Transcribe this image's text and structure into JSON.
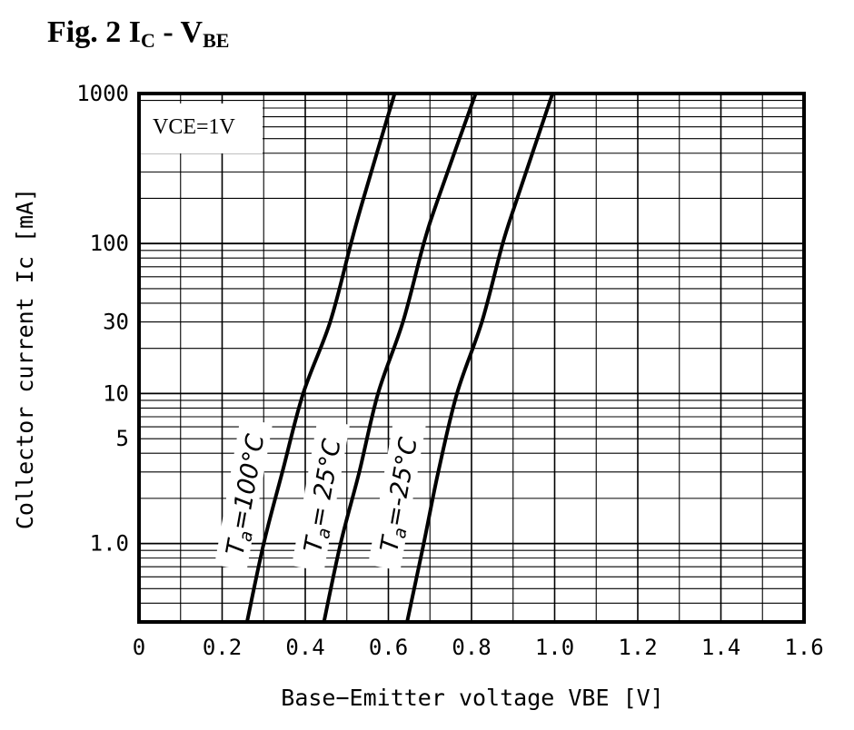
{
  "chart_data": {
    "type": "line",
    "title": {
      "main": "Fig. 2 I",
      "sub1": "C",
      "mid": " - V",
      "sub2": "BE"
    },
    "xlabel": "Base−Emitter voltage VBE [V]",
    "ylabel": "Collector current Ic [mA]",
    "xlim": [
      0,
      1.6
    ],
    "ylim": [
      0.3,
      1000
    ],
    "yscale": "log",
    "grid": true,
    "x_ticks": [
      {
        "v": 0,
        "label": "0"
      },
      {
        "v": 0.2,
        "label": "0.2"
      },
      {
        "v": 0.4,
        "label": "0.4"
      },
      {
        "v": 0.6,
        "label": "0.6"
      },
      {
        "v": 0.8,
        "label": "0.8"
      },
      {
        "v": 1.0,
        "label": "1.0"
      },
      {
        "v": 1.2,
        "label": "1.2"
      },
      {
        "v": 1.4,
        "label": "1.4"
      },
      {
        "v": 1.6,
        "label": "1.6"
      }
    ],
    "y_ticks": [
      {
        "v": 1000,
        "label": "1000"
      },
      {
        "v": 100,
        "label": "100"
      },
      {
        "v": 30,
        "label": "30"
      },
      {
        "v": 10,
        "label": "10"
      },
      {
        "v": 5,
        "label": "5"
      },
      {
        "v": 1.0,
        "label": "1.0"
      }
    ],
    "annotation": "VCE=1V",
    "series": [
      {
        "name": "Ta=100°C",
        "label_parts": [
          "T",
          "a",
          "=100°C"
        ],
        "x": [
          0.26,
          0.3,
          0.345,
          0.395,
          0.46,
          0.51,
          0.54,
          0.615
        ],
        "y": [
          0.3,
          1,
          3,
          10,
          30,
          100,
          200,
          1000
        ]
      },
      {
        "name": "Ta= 25°C",
        "label_parts": [
          "T",
          "a",
          "= 25°C"
        ],
        "x": [
          0.445,
          0.485,
          0.53,
          0.575,
          0.635,
          0.685,
          0.72,
          0.81
        ],
        "y": [
          0.3,
          1,
          3,
          10,
          30,
          100,
          200,
          1000
        ]
      },
      {
        "name": "Ta=-25°C",
        "label_parts": [
          "T",
          "a",
          "=-25°C"
        ],
        "x": [
          0.645,
          0.685,
          0.72,
          0.765,
          0.825,
          0.875,
          0.91,
          0.995
        ],
        "y": [
          0.3,
          1,
          3,
          10,
          30,
          100,
          200,
          1000
        ]
      }
    ]
  }
}
